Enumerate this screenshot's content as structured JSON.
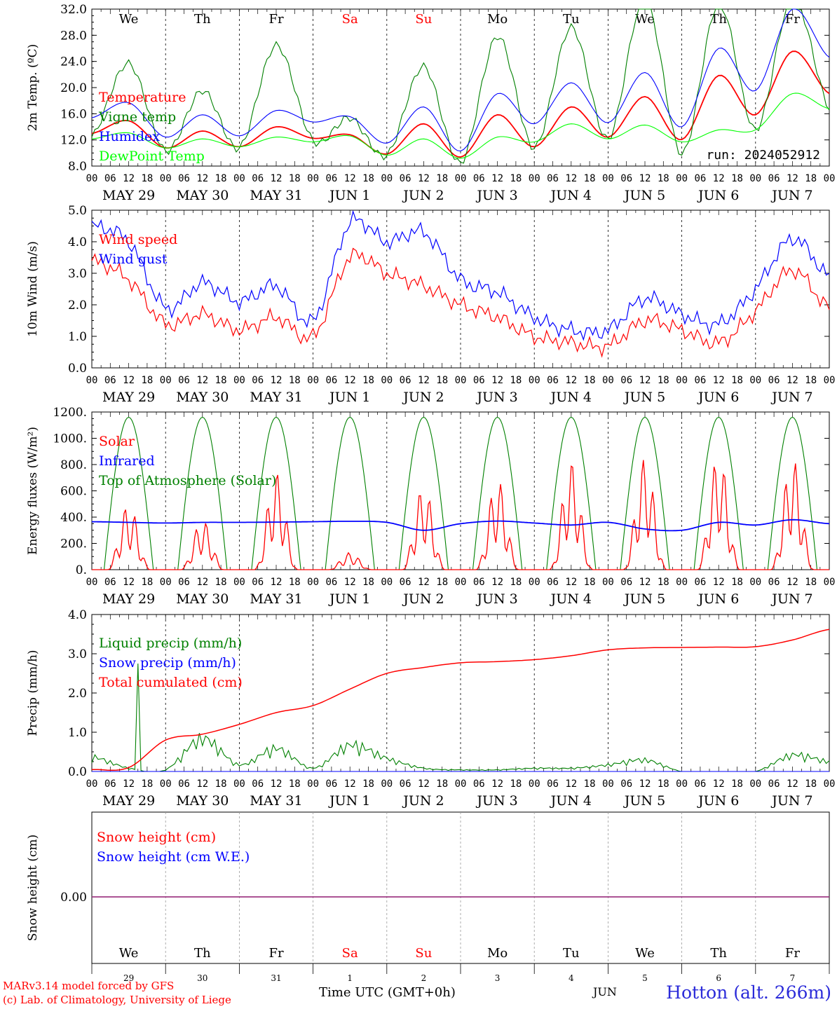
{
  "chart_data": [
    {
      "type": "line",
      "panel": "temperature",
      "ylabel": "2m Temp. (ºC)",
      "ylim": [
        8,
        34
      ],
      "yticks": [
        "8.0",
        "12.0",
        "16.0",
        "20.0",
        "24.0",
        "28.0",
        "32.0"
      ],
      "annotation": "run: 2024052912",
      "x_hours": [
        0,
        12,
        24,
        36,
        48,
        60,
        72,
        84,
        96,
        108,
        120,
        132,
        144,
        156,
        168,
        180,
        192,
        204,
        216,
        228,
        240
      ],
      "series": [
        {
          "name": "Temperature",
          "color": "#ff0000",
          "values": [
            13.4,
            15.5,
            11.0,
            13.8,
            11.2,
            14.5,
            12.6,
            13.2,
            10.0,
            15.0,
            9.5,
            16.5,
            11.2,
            17.8,
            12.8,
            19.5,
            12.4,
            23.0,
            16.5,
            27.0,
            20.0
          ]
        },
        {
          "name": "Vigne temp",
          "color": "#008000",
          "values": [
            12.8,
            25.0,
            10.5,
            20.5,
            11.0,
            28.0,
            12.2,
            16.0,
            9.8,
            24.5,
            8.5,
            29.5,
            11.0,
            31.0,
            12.5,
            36.0,
            10.0,
            35.0,
            14.0,
            36.0,
            17.5
          ]
        },
        {
          "name": "Humidex",
          "color": "#0000ff",
          "values": [
            16.0,
            18.5,
            12.8,
            16.5,
            13.0,
            17.2,
            15.3,
            16.2,
            11.8,
            17.8,
            10.5,
            20.0,
            15.0,
            21.8,
            15.2,
            23.5,
            14.5,
            27.5,
            20.5,
            34.0,
            26.0
          ]
        },
        {
          "name": "DewPoint Temp",
          "color": "#00ff00",
          "values": [
            12.5,
            13.5,
            11.0,
            12.5,
            11.2,
            12.8,
            12.0,
            13.0,
            9.8,
            12.5,
            9.3,
            12.8,
            12.0,
            15.0,
            12.5,
            14.8,
            12.0,
            14.0,
            14.0,
            20.0,
            17.5
          ]
        }
      ]
    },
    {
      "type": "line",
      "panel": "wind",
      "ylabel": "10m Wind (m/s)",
      "ylim": [
        0,
        5
      ],
      "yticks": [
        "0.0",
        "1.0",
        "2.0",
        "3.0",
        "4.0",
        "5.0"
      ],
      "x_hours": [
        0,
        12,
        24,
        36,
        48,
        60,
        72,
        84,
        96,
        108,
        120,
        132,
        144,
        156,
        168,
        180,
        192,
        204,
        216,
        228,
        240
      ],
      "series": [
        {
          "name": "Wind speed",
          "color": "#ff0000",
          "values": [
            3.4,
            2.8,
            1.4,
            1.7,
            1.2,
            1.6,
            1.0,
            3.5,
            3.0,
            2.6,
            2.0,
            1.6,
            1.0,
            0.8,
            0.7,
            1.5,
            1.2,
            0.8,
            1.8,
            3.1,
            1.9
          ]
        },
        {
          "name": "Wind gust",
          "color": "#0000ff",
          "values": [
            4.5,
            4.0,
            1.9,
            2.7,
            2.1,
            2.6,
            1.5,
            4.6,
            4.0,
            4.3,
            2.8,
            2.4,
            1.6,
            1.2,
            1.2,
            2.2,
            1.7,
            1.4,
            2.5,
            4.1,
            2.9
          ]
        }
      ]
    },
    {
      "type": "line",
      "panel": "energy",
      "ylabel": "Energy fluxes (W/m²)",
      "ylim": [
        0,
        1200
      ],
      "yticks": [
        "0.",
        "200.",
        "400.",
        "600.",
        "800.",
        "1000.",
        "1200."
      ],
      "x_hours": [
        0,
        12,
        24,
        36,
        48,
        60,
        72,
        84,
        96,
        108,
        120,
        132,
        144,
        156,
        168,
        180,
        192,
        204,
        216,
        228,
        240
      ],
      "daily_solar_peak": [
        500,
        380,
        740,
        130,
        640,
        690,
        820,
        850,
        880,
        850
      ],
      "toa_daily_peak": 1160,
      "series": [
        {
          "name": "Solar",
          "color": "#ff0000"
        },
        {
          "name": "Infrared",
          "color": "#0000ff",
          "values": [
            365,
            360,
            355,
            360,
            360,
            362,
            365,
            368,
            360,
            300,
            350,
            370,
            355,
            340,
            360,
            310,
            300,
            360,
            340,
            380,
            350
          ]
        },
        {
          "name": "Top of Atmosphere (Solar)",
          "color": "#008000"
        }
      ]
    },
    {
      "type": "line",
      "panel": "precip",
      "ylabel": "Precip (mm/h)",
      "ylim": [
        0,
        4
      ],
      "yticks": [
        "0.0",
        "1.0",
        "2.0",
        "3.0",
        "4.0"
      ],
      "x_hours": [
        0,
        12,
        24,
        36,
        48,
        60,
        72,
        84,
        96,
        108,
        120,
        132,
        144,
        156,
        168,
        180,
        192,
        204,
        216,
        228,
        240
      ],
      "series": [
        {
          "name": "Liquid precip (mm/h)",
          "color": "#008000",
          "values": [
            0.45,
            0.1,
            0.05,
            1.0,
            0.2,
            0.7,
            0.1,
            0.8,
            0.4,
            0.1,
            0.05,
            0.05,
            0.1,
            0.1,
            0.2,
            0.35,
            0.0,
            0.0,
            0.0,
            0.5,
            0.3
          ]
        },
        {
          "name": "Snow precip (mm/h)",
          "color": "#0000ff",
          "values": [
            0,
            0,
            0,
            0,
            0,
            0,
            0,
            0,
            0,
            0,
            0,
            0,
            0,
            0,
            0,
            0,
            0,
            0,
            0,
            0,
            0
          ]
        },
        {
          "name": "Total cumulated (cm)",
          "color": "#ff0000",
          "values": [
            0.05,
            0.1,
            0.8,
            0.95,
            1.2,
            1.5,
            1.68,
            2.1,
            2.5,
            2.65,
            2.77,
            2.8,
            2.85,
            2.95,
            3.1,
            3.15,
            3.16,
            3.17,
            3.18,
            3.35,
            3.62
          ]
        }
      ]
    },
    {
      "type": "line",
      "panel": "snow",
      "ylabel": "Snow height (cm)",
      "ytick": "0.00",
      "series": [
        {
          "name": "Snow height (cm)",
          "color": "#ff0000",
          "values": [
            0,
            0
          ]
        },
        {
          "name": "Snow height (cm W.E.)",
          "color": "#0000ff",
          "values": [
            0,
            0
          ]
        }
      ]
    }
  ],
  "days": {
    "weekdays": [
      "We",
      "Th",
      "Fr",
      "Sa",
      "Su",
      "Mo",
      "Tu",
      "We",
      "Th",
      "Fr"
    ],
    "weekday_colors": [
      "#000000",
      "#000000",
      "#000000",
      "#ff0000",
      "#ff0000",
      "#000000",
      "#000000",
      "#000000",
      "#000000",
      "#000000"
    ],
    "dates": [
      "MAY 29",
      "MAY 30",
      "MAY 31",
      "JUN  1",
      "JUN  2",
      "JUN  3",
      "JUN  4",
      "JUN  5",
      "JUN  6",
      "JUN  7"
    ],
    "day_numbers": [
      "29",
      "30",
      "31",
      "1",
      "2",
      "3",
      "4",
      "5",
      "6",
      "7"
    ],
    "hour_labels": [
      "00",
      "06",
      "12",
      "18"
    ],
    "final_hour_label": "00"
  },
  "footer": {
    "credit_line1": "MARv3.14 model forced by GFS",
    "credit_line2": "(c) Lab. of Climatology, University of Liege",
    "xaxis_title": "Time UTC (GMT+0h)",
    "month": "JUN",
    "station": "Hotton (alt. 266m)"
  }
}
